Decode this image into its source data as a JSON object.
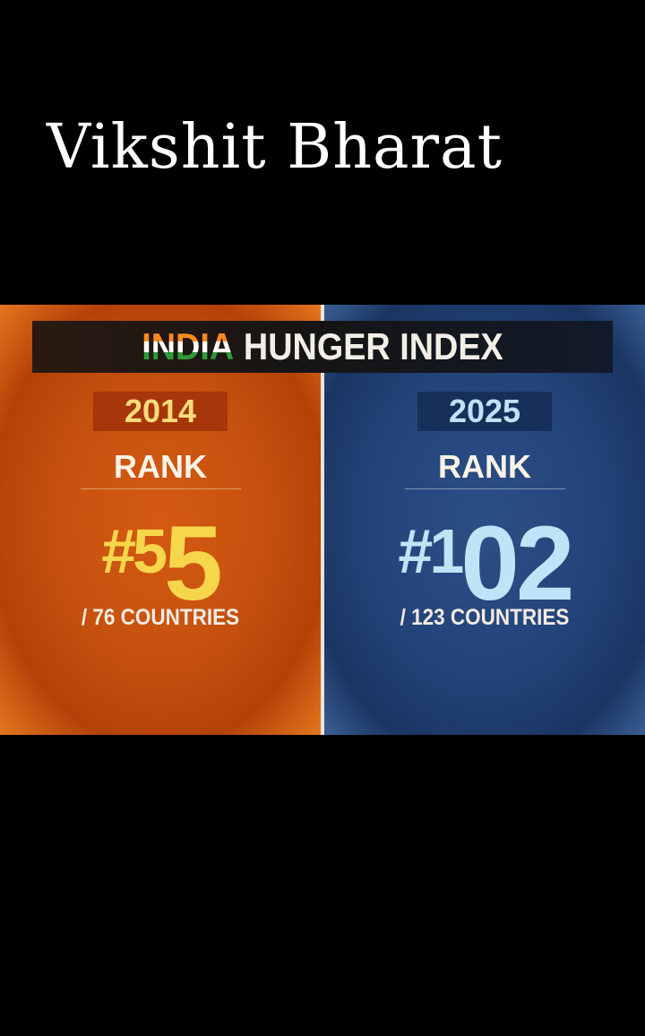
{
  "caption": "Vikshit Bharat",
  "infographic": {
    "title_highlight": "INDIA",
    "title_rest": "HUNGER INDEX",
    "panels": [
      {
        "year": "2014",
        "rank_label": "RANK",
        "rank": "#55",
        "countries": "/ 76 COUNTRIES"
      },
      {
        "year": "2025",
        "rank_label": "RANK",
        "rank": "#102",
        "countries": "/ 123 COUNTRIES"
      }
    ]
  }
}
